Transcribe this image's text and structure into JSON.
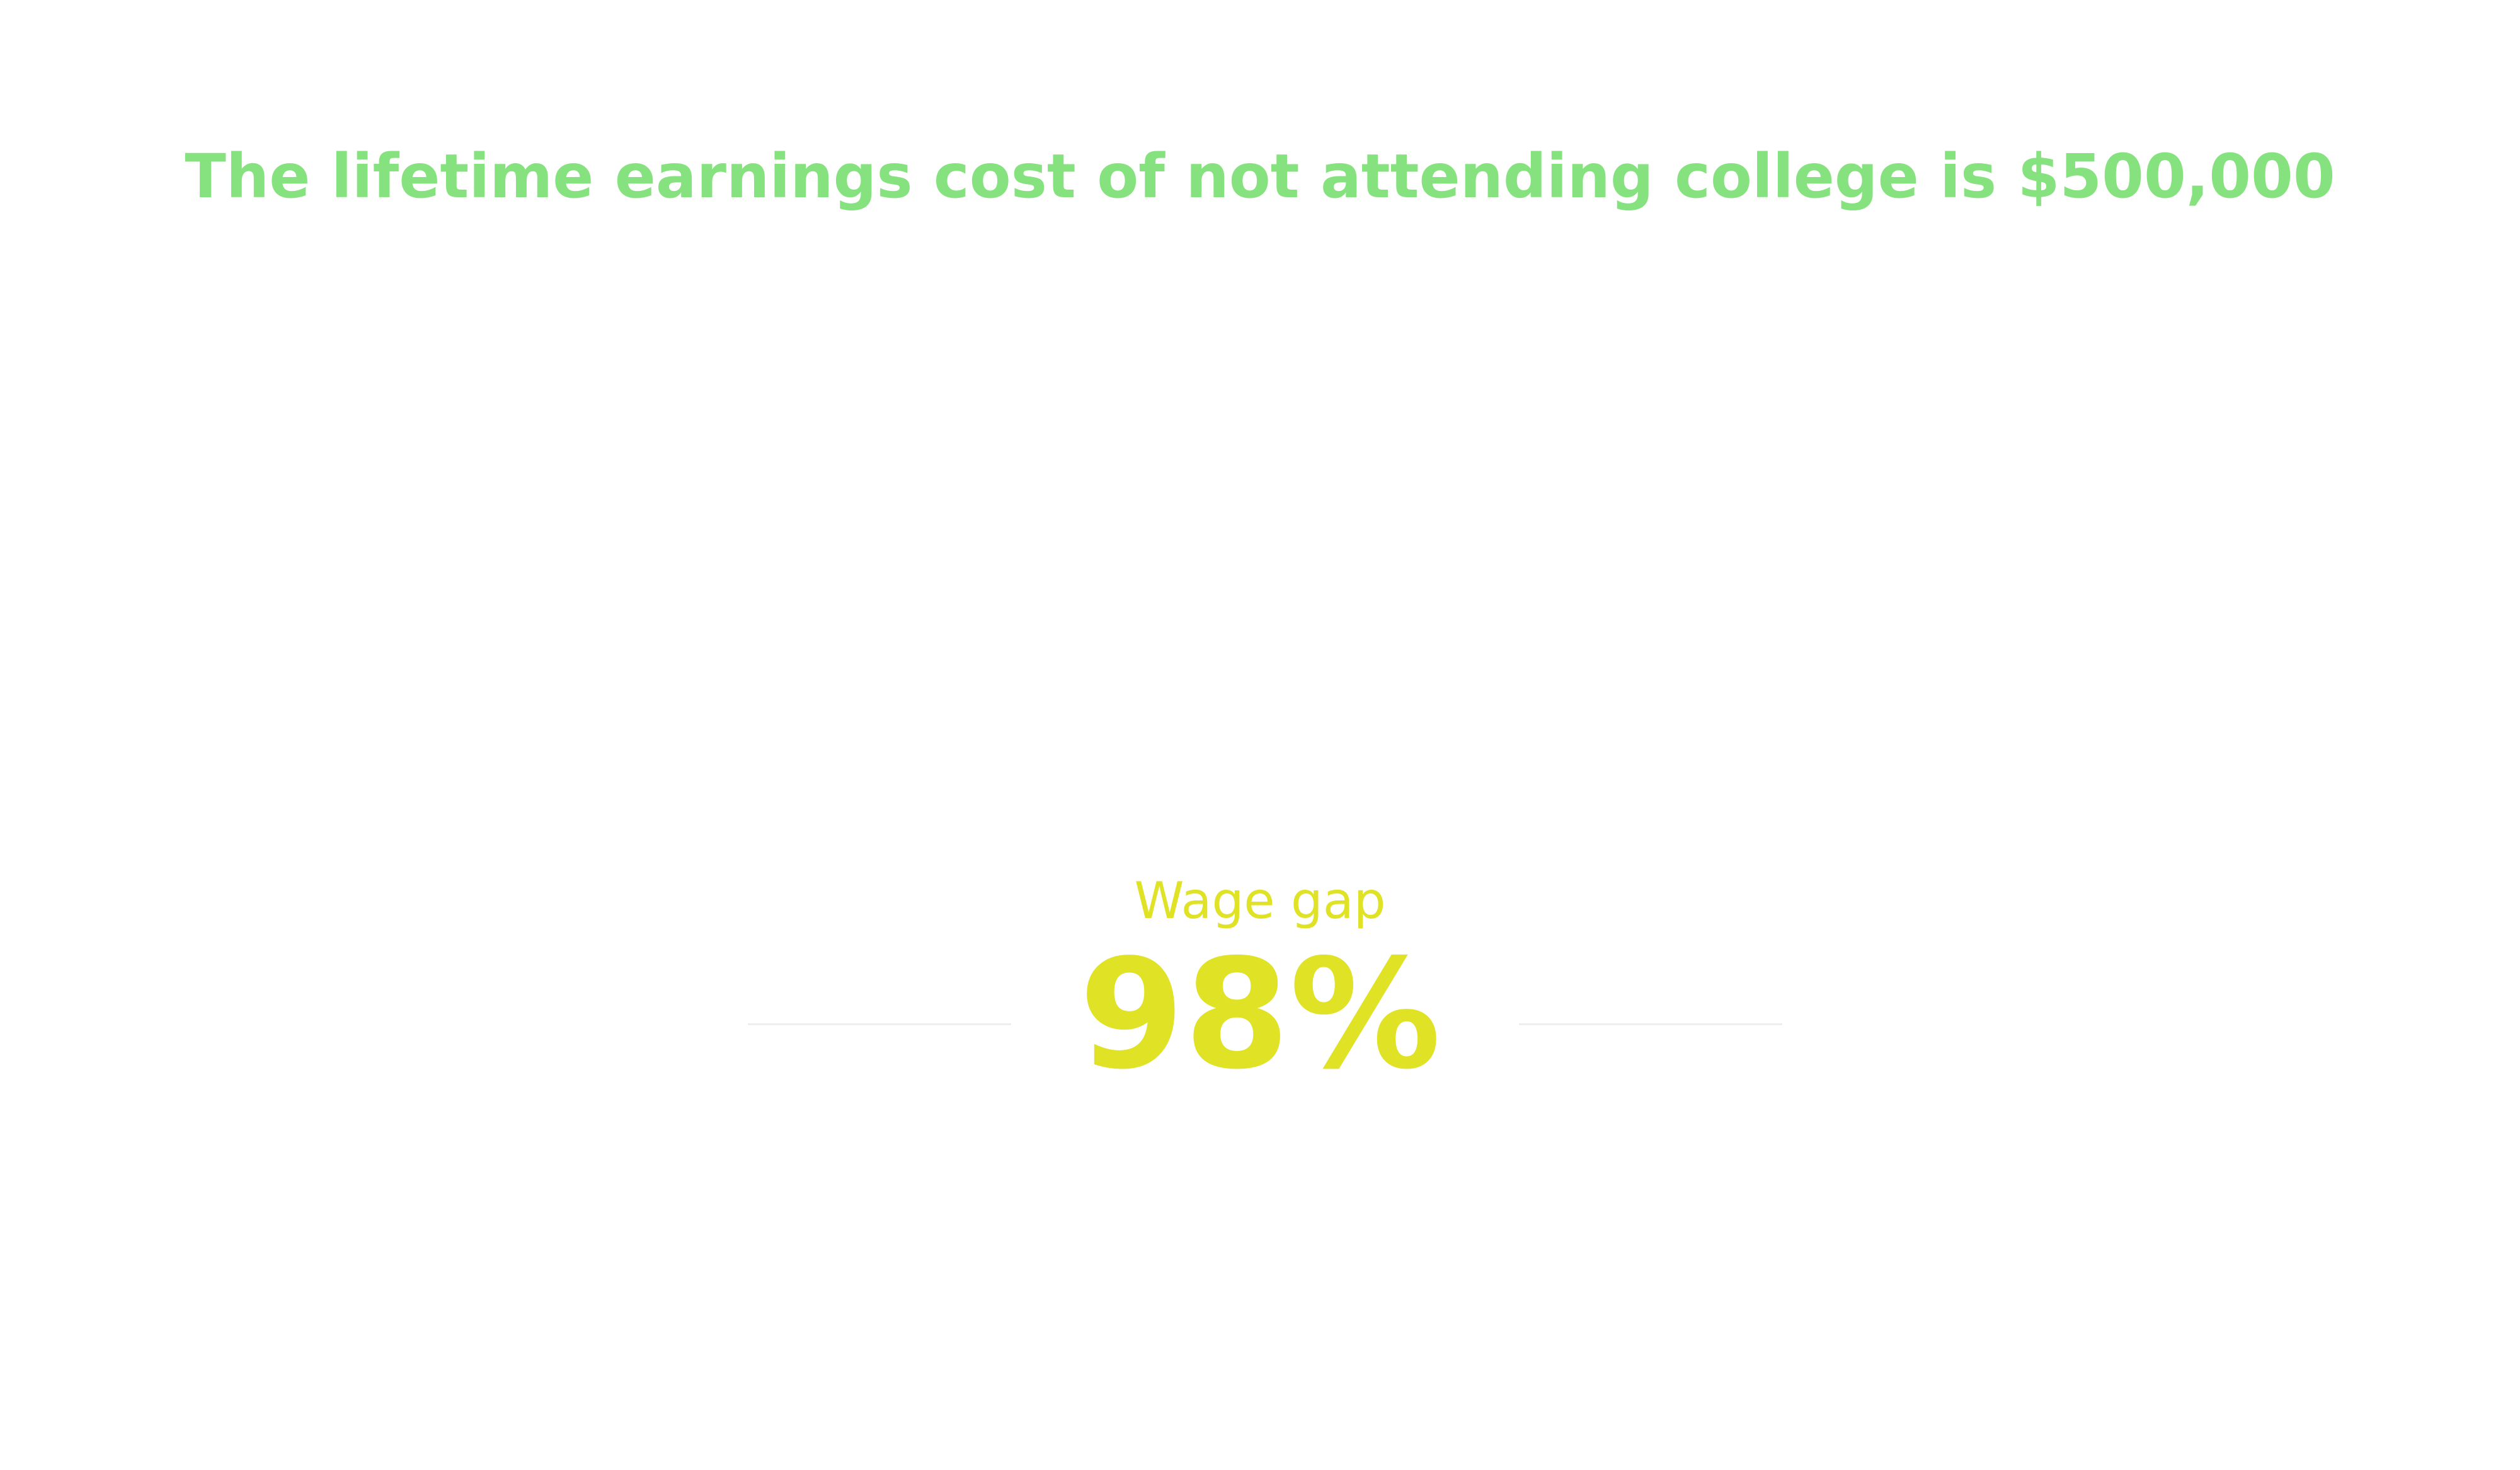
{
  "headline": {
    "text": "The lifetime earnings cost of not attending college is $500,000",
    "color": "#86e27f"
  },
  "stat": {
    "label": "Wage gap",
    "value": "98%",
    "color": "#e0e226"
  },
  "divider_color": "#eeeeee"
}
